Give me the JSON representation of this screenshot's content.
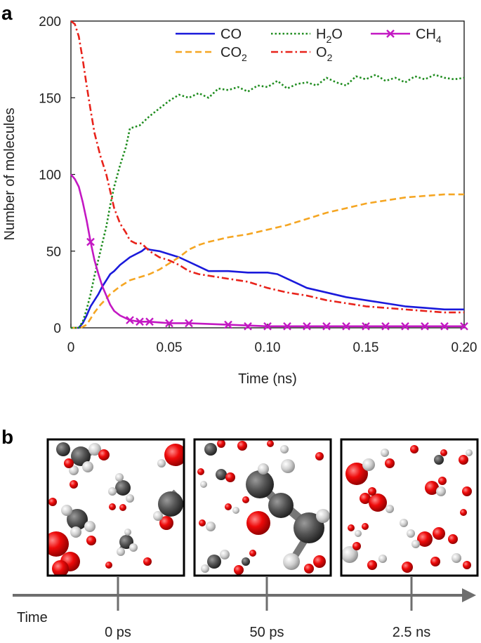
{
  "panels": {
    "a_label": "a",
    "b_label": "b"
  },
  "chart_data": {
    "type": "line",
    "xlabel": "Time (ns)",
    "ylabel": "Number of molecules",
    "xlim": [
      0,
      0.2
    ],
    "ylim": [
      0,
      200
    ],
    "xticks": [
      "0",
      "0.05",
      "0.10",
      "0.15",
      "0.20"
    ],
    "yticks": [
      "0",
      "50",
      "100",
      "150",
      "200"
    ],
    "grid": false,
    "legend_position": "top-right",
    "series": [
      {
        "name": "CO",
        "label_main": "CO",
        "label_sub": "",
        "label_tail": "",
        "color": "#1a1adb",
        "style": "solid",
        "x": [
          0,
          0.004,
          0.006,
          0.008,
          0.01,
          0.012,
          0.014,
          0.016,
          0.018,
          0.02,
          0.022,
          0.025,
          0.028,
          0.03,
          0.033,
          0.036,
          0.038,
          0.04,
          0.045,
          0.05,
          0.055,
          0.06,
          0.065,
          0.07,
          0.075,
          0.08,
          0.09,
          0.1,
          0.105,
          0.11,
          0.115,
          0.12,
          0.13,
          0.14,
          0.15,
          0.16,
          0.17,
          0.18,
          0.19,
          0.2
        ],
        "y": [
          0,
          0,
          3,
          8,
          14,
          18,
          22,
          27,
          31,
          35,
          37,
          41,
          44,
          46,
          48,
          50,
          52,
          51,
          50,
          48,
          46,
          43,
          40,
          37,
          37,
          37,
          36,
          36,
          35,
          32,
          29,
          26,
          23,
          20,
          18,
          16,
          14,
          13,
          12,
          12
        ]
      },
      {
        "name": "CO2",
        "label_main": "CO",
        "label_sub": "2",
        "label_tail": "",
        "color": "#f5a623",
        "style": "dashed",
        "x": [
          0,
          0.005,
          0.008,
          0.01,
          0.012,
          0.015,
          0.018,
          0.02,
          0.025,
          0.03,
          0.035,
          0.04,
          0.045,
          0.05,
          0.055,
          0.06,
          0.065,
          0.07,
          0.08,
          0.09,
          0.1,
          0.11,
          0.12,
          0.13,
          0.14,
          0.15,
          0.16,
          0.17,
          0.18,
          0.19,
          0.2
        ],
        "y": [
          0,
          0,
          2,
          6,
          10,
          15,
          19,
          22,
          27,
          31,
          33,
          35,
          38,
          42,
          46,
          51,
          54,
          56,
          59,
          61,
          64,
          67,
          71,
          75,
          78,
          81,
          83,
          85,
          86,
          87,
          87
        ]
      },
      {
        "name": "H2O",
        "label_main": "H",
        "label_sub": "2",
        "label_tail": "O",
        "color": "#1e8c1e",
        "style": "dotted",
        "x": [
          0,
          0.004,
          0.006,
          0.008,
          0.01,
          0.012,
          0.015,
          0.018,
          0.02,
          0.022,
          0.025,
          0.028,
          0.03,
          0.035,
          0.04,
          0.045,
          0.05,
          0.055,
          0.06,
          0.065,
          0.07,
          0.075,
          0.08,
          0.085,
          0.09,
          0.095,
          0.1,
          0.105,
          0.11,
          0.115,
          0.12,
          0.125,
          0.13,
          0.135,
          0.14,
          0.145,
          0.15,
          0.155,
          0.16,
          0.165,
          0.17,
          0.175,
          0.18,
          0.185,
          0.19,
          0.195,
          0.2
        ],
        "y": [
          0,
          0,
          4,
          12,
          22,
          34,
          50,
          66,
          80,
          92,
          106,
          118,
          130,
          132,
          138,
          143,
          148,
          152,
          150,
          153,
          150,
          156,
          155,
          157,
          154,
          158,
          157,
          161,
          156,
          159,
          160,
          158,
          163,
          160,
          158,
          164,
          162,
          165,
          161,
          163,
          160,
          164,
          162,
          165,
          163,
          162,
          163
        ]
      },
      {
        "name": "O2",
        "label_main": "O",
        "label_sub": "2",
        "label_tail": "",
        "color": "#e8231b",
        "style": "dashdot",
        "x": [
          0,
          0.002,
          0.004,
          0.006,
          0.008,
          0.01,
          0.012,
          0.015,
          0.018,
          0.02,
          0.022,
          0.025,
          0.028,
          0.03,
          0.033,
          0.036,
          0.04,
          0.045,
          0.05,
          0.055,
          0.06,
          0.065,
          0.07,
          0.08,
          0.09,
          0.1,
          0.11,
          0.12,
          0.13,
          0.14,
          0.15,
          0.16,
          0.17,
          0.18,
          0.19,
          0.2
        ],
        "y": [
          200,
          198,
          190,
          175,
          158,
          142,
          127,
          112,
          100,
          89,
          78,
          68,
          62,
          57,
          55,
          55,
          50,
          46,
          44,
          41,
          37,
          35,
          34,
          32,
          30,
          26,
          23,
          21,
          18,
          16,
          14,
          13,
          12,
          11,
          10,
          10
        ]
      },
      {
        "name": "CH4",
        "label_main": "CH",
        "label_sub": "4",
        "label_tail": "",
        "color": "#c318c3",
        "style": "solid-x",
        "x": [
          0,
          0.002,
          0.004,
          0.006,
          0.008,
          0.01,
          0.012,
          0.014,
          0.016,
          0.018,
          0.02,
          0.022,
          0.025,
          0.03,
          0.035,
          0.04,
          0.05,
          0.06,
          0.08,
          0.1,
          0.12,
          0.14,
          0.16,
          0.18,
          0.2
        ],
        "y": [
          100,
          97,
          92,
          82,
          70,
          56,
          44,
          35,
          27,
          21,
          15,
          11,
          8,
          5,
          4,
          4,
          3,
          3,
          2,
          1,
          1,
          1,
          1,
          1,
          1
        ],
        "markers_x": [
          0.01,
          0.03,
          0.035,
          0.04,
          0.05,
          0.06,
          0.08,
          0.09,
          0.1,
          0.11,
          0.12,
          0.13,
          0.14,
          0.15,
          0.16,
          0.17,
          0.18,
          0.19,
          0.2
        ],
        "markers_y": [
          56,
          5,
          4,
          4,
          3,
          3,
          2,
          1,
          1,
          1,
          1,
          1,
          1,
          1,
          1,
          1,
          1,
          1,
          1
        ]
      }
    ]
  },
  "timeline": {
    "label": "Time",
    "snapshots": [
      {
        "label": "0 ps"
      },
      {
        "label": "50 ps"
      },
      {
        "label": "2.5 ns"
      }
    ]
  },
  "colors": {
    "oxygen": "#ee0a0a",
    "carbon": "#585858",
    "hydrogen": "#c8c8c8",
    "axis": "#6e6e6e"
  }
}
